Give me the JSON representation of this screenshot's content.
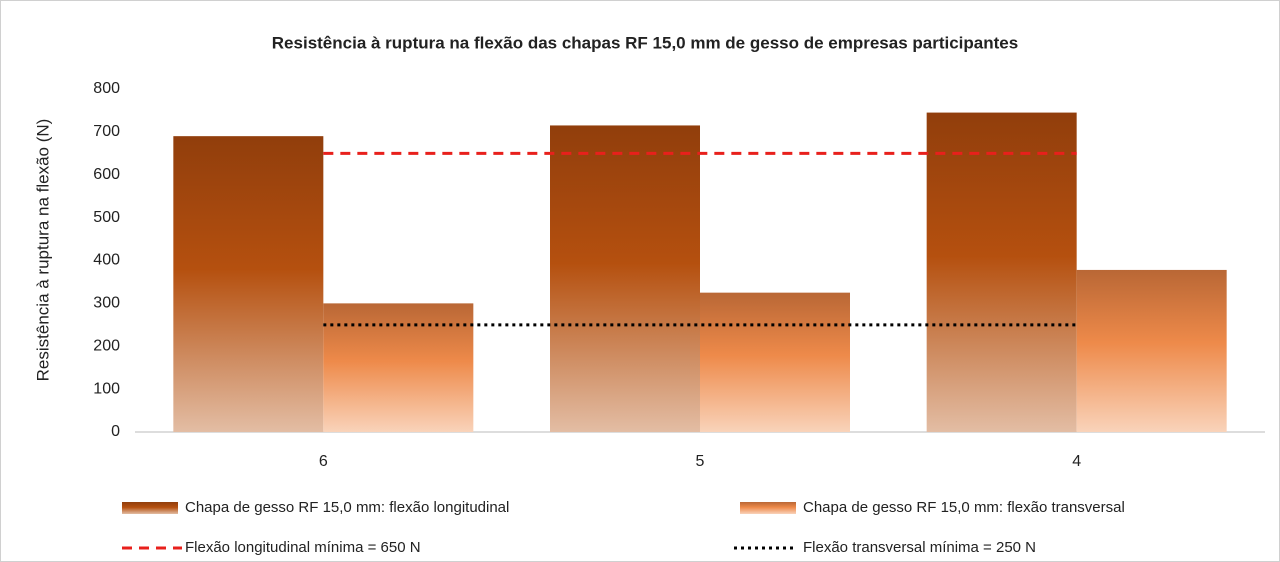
{
  "chart_data": {
    "type": "bar",
    "title": "Resistência à ruptura na flexão das chapas RF 15,0 mm de gesso de empresas participantes",
    "y_axis_label": "Resistência à ruptura na flexão (N)",
    "categories": [
      "6",
      "5",
      "4"
    ],
    "series": [
      {
        "name": "Chapa de gesso RF 15,0 mm: flexão longitudinal",
        "type": "bar",
        "color": "#b5500f",
        "values": [
          690,
          715,
          745
        ]
      },
      {
        "name": "Chapa de gesso RF 15,0 mm: flexão transversal",
        "type": "bar",
        "color": "#ee8a4a",
        "values": [
          300,
          325,
          378
        ]
      },
      {
        "name": "Flexão longitudinal mínima = 650 N",
        "type": "line",
        "style": "dashed",
        "color": "#e8201c",
        "values": [
          650,
          650,
          650
        ]
      },
      {
        "name": "Flexão transversal mínima = 250 N",
        "type": "line",
        "style": "dotted",
        "color": "#000000",
        "values": [
          250,
          250,
          250
        ]
      }
    ],
    "ylim": [
      0,
      800
    ],
    "yticks": [
      0,
      100,
      200,
      300,
      400,
      500,
      600,
      700,
      800
    ],
    "grid": false,
    "legend": "bottom"
  }
}
